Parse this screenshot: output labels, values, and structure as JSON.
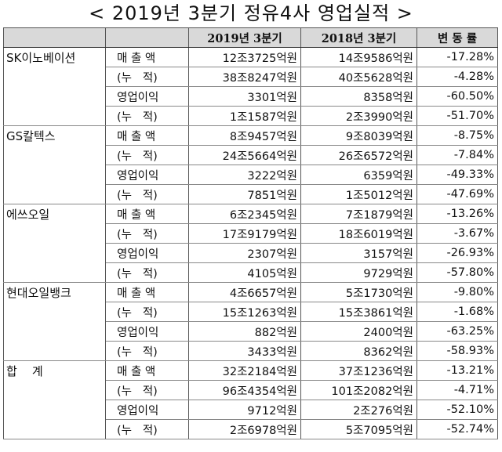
{
  "title": "< 2019년 3분기 정유4사 영업실적 >",
  "columns": [
    "",
    "",
    "2019년 3분기",
    "2018년 3분기",
    "변 동 률"
  ],
  "groups": [
    {
      "company": "SK이노베이션",
      "rows": [
        [
          "매 출 액",
          "12조3725억원",
          "14조9586억원",
          "-17.28%"
        ],
        [
          "(누   적)",
          "38조8247억원",
          "40조5628억원",
          "-4.28%"
        ],
        [
          "영업이익",
          "3301억원",
          "8358억원",
          "-60.50%"
        ],
        [
          "(누   적)",
          "1조1587억원",
          "2조3990억원",
          "-51.70%"
        ]
      ]
    },
    {
      "company": "GS칼텍스",
      "rows": [
        [
          "매 출 액",
          "8조9457억원",
          "9조8039억원",
          "-8.75%"
        ],
        [
          "(누   적)",
          "24조5664억원",
          "26조6572억원",
          "-7.84%"
        ],
        [
          "영업이익",
          "3222억원",
          "6359억원",
          "-49.33%"
        ],
        [
          "(누   적)",
          "7851억원",
          "1조5012억원",
          "-47.69%"
        ]
      ]
    },
    {
      "company": "에쓰오일",
      "rows": [
        [
          "매 출 액",
          "6조2345억원",
          "7조1879억원",
          "-13.26%"
        ],
        [
          "(누   적)",
          "17조9179억원",
          "18조6019억원",
          "-3.67%"
        ],
        [
          "영업이익",
          "2307억원",
          "3157억원",
          "-26.93%"
        ],
        [
          "(누   적)",
          "4105억원",
          "9729억원",
          "-57.80%"
        ]
      ]
    },
    {
      "company": "현대오일뱅크",
      "rows": [
        [
          "매 출 액",
          "4조6657억원",
          "5조1730억원",
          "-9.80%"
        ],
        [
          "(누   적)",
          "15조1263억원",
          "15조3861억원",
          "-1.68%"
        ],
        [
          "영업이익",
          "882억원",
          "2400억원",
          "-63.25%"
        ],
        [
          "(누   적)",
          "3433억원",
          "8362억원",
          "-58.93%"
        ]
      ]
    },
    {
      "company": "합    계",
      "rows": [
        [
          "매 출 액",
          "32조2184억원",
          "37조1236억원",
          "-13.21%"
        ],
        [
          "(누   적)",
          "96조4354억원",
          "101조2082억원",
          "-4.71%"
        ],
        [
          "영업이익",
          "9712억원",
          "2조276억원",
          "-52.10%"
        ],
        [
          "(누   적)",
          "2조6978억원",
          "5조7095억원",
          "-52.74%"
        ]
      ]
    }
  ]
}
